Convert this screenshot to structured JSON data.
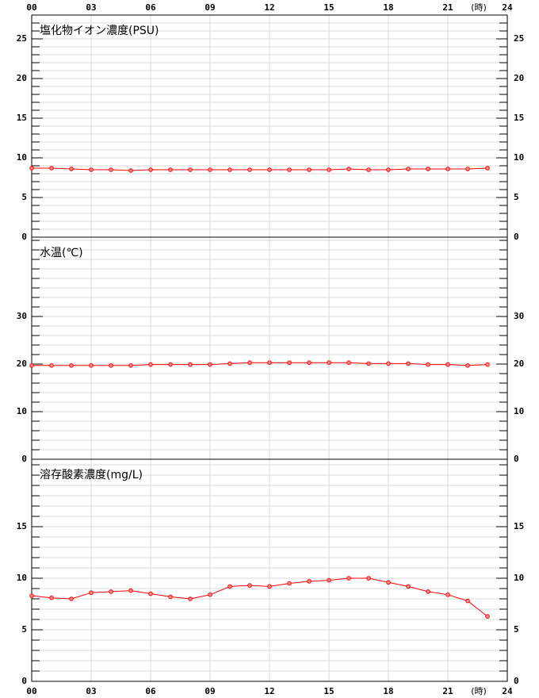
{
  "chart_data": [
    {
      "type": "line",
      "title": "塩化物イオン濃度(PSU)",
      "x_unit": "(時)",
      "color": "#ff0000",
      "grid": true,
      "x": [
        0,
        1,
        2,
        3,
        4,
        5,
        6,
        7,
        8,
        9,
        10,
        11,
        12,
        13,
        14,
        15,
        16,
        17,
        18,
        19,
        20,
        21,
        22,
        23
      ],
      "values": [
        8.7,
        8.7,
        8.6,
        8.5,
        8.5,
        8.4,
        8.5,
        8.5,
        8.5,
        8.5,
        8.5,
        8.5,
        8.5,
        8.5,
        8.5,
        8.5,
        8.6,
        8.5,
        8.5,
        8.6,
        8.6,
        8.6,
        8.6,
        8.7
      ],
      "xlim": [
        0,
        24
      ],
      "xticks": [
        {
          "value": 0,
          "label": "00"
        },
        {
          "value": 3,
          "label": "03"
        },
        {
          "value": 6,
          "label": "06"
        },
        {
          "value": 9,
          "label": "09"
        },
        12,
        15,
        18,
        21,
        24
      ],
      "ylim": [
        0,
        28
      ],
      "yticks": [
        0,
        5,
        10,
        15,
        20,
        25
      ]
    },
    {
      "type": "line",
      "title": "水温(℃)",
      "color": "#ff0000",
      "grid": true,
      "x": [
        0,
        1,
        2,
        3,
        4,
        5,
        6,
        7,
        8,
        9,
        10,
        11,
        12,
        13,
        14,
        15,
        16,
        17,
        18,
        19,
        20,
        21,
        22,
        23
      ],
      "values": [
        19.7,
        19.7,
        19.7,
        19.7,
        19.7,
        19.7,
        19.9,
        19.9,
        19.9,
        19.9,
        20.1,
        20.3,
        20.3,
        20.3,
        20.3,
        20.3,
        20.3,
        20.1,
        20.1,
        20.1,
        19.9,
        19.9,
        19.7,
        19.9
      ],
      "xlim": [
        0,
        24
      ],
      "xticks": [
        0,
        3,
        6,
        9,
        12,
        15,
        18,
        21,
        24
      ],
      "ylim": [
        0,
        46.67
      ],
      "yticks": [
        0,
        10,
        20,
        30
      ]
    },
    {
      "type": "line",
      "title": "溶存酸素濃度(mg/L)",
      "x_unit": "(時)",
      "color": "#ff0000",
      "grid": true,
      "x": [
        0,
        1,
        2,
        3,
        4,
        5,
        6,
        7,
        8,
        9,
        10,
        11,
        12,
        13,
        14,
        15,
        16,
        17,
        18,
        19,
        20,
        21,
        22,
        23
      ],
      "values": [
        8.3,
        8.1,
        8.0,
        8.6,
        8.7,
        8.8,
        8.5,
        8.2,
        8.0,
        8.4,
        9.2,
        9.3,
        9.2,
        9.5,
        9.7,
        9.8,
        10.0,
        10.0,
        9.6,
        9.2,
        8.7,
        8.4,
        7.8,
        6.3
      ],
      "xlim": [
        0,
        24
      ],
      "xticks": [
        {
          "value": 0,
          "label": "00"
        },
        {
          "value": 3,
          "label": "03"
        },
        {
          "value": 6,
          "label": "06"
        },
        {
          "value": 9,
          "label": "09"
        },
        12,
        15,
        18,
        21,
        24
      ],
      "ylim": [
        0,
        21.54
      ],
      "yticks": [
        0,
        5,
        10,
        15
      ]
    }
  ]
}
